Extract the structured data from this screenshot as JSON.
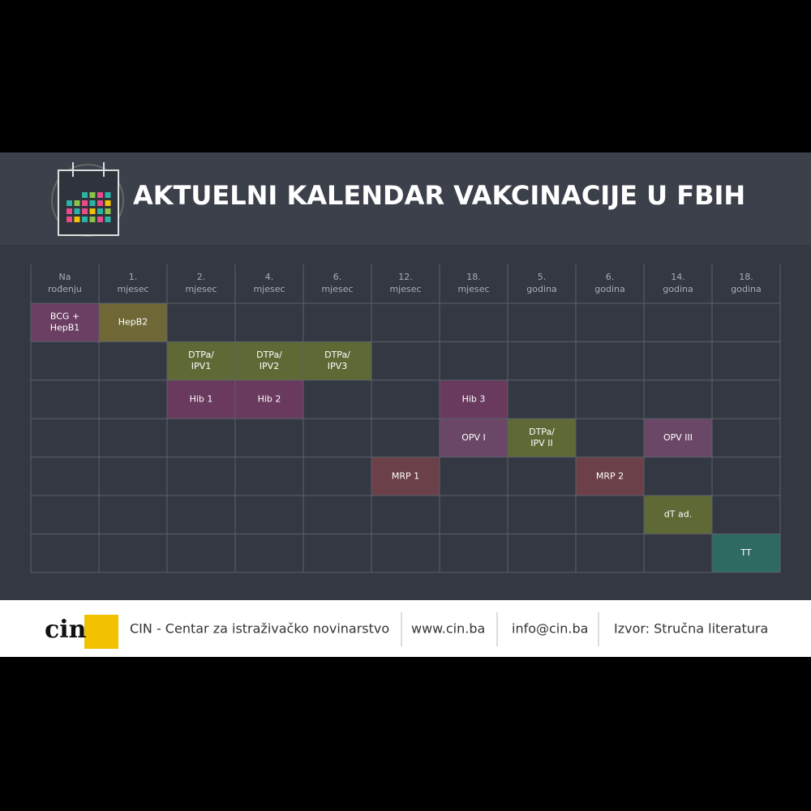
{
  "header": {
    "title": "AKTUELNI KALENDAR VAKCINACIJE U FBIH"
  },
  "table": {
    "columns": [
      [
        "Na",
        "rođenju"
      ],
      [
        "1.",
        "mjesec"
      ],
      [
        "2.",
        "mjesec"
      ],
      [
        "4.",
        "mjesec"
      ],
      [
        "6.",
        "mjesec"
      ],
      [
        "12.",
        "mjesec"
      ],
      [
        "18.",
        "mjesec"
      ],
      [
        "5.",
        "godina"
      ],
      [
        "6.",
        "godina"
      ],
      [
        "14.",
        "godina"
      ],
      [
        "18.",
        "godina"
      ]
    ],
    "rows": [
      [
        {
          "lines": [
            "BCG +",
            "HepB1"
          ],
          "color": "#6b3f63"
        },
        {
          "lines": [
            "HepB2"
          ],
          "color": "#6f6836"
        },
        null,
        null,
        null,
        null,
        null,
        null,
        null,
        null,
        null
      ],
      [
        null,
        null,
        {
          "lines": [
            "DTPa/",
            "IPV1"
          ],
          "color": "#5e6936"
        },
        {
          "lines": [
            "DTPa/",
            "IPV2"
          ],
          "color": "#5e6936"
        },
        {
          "lines": [
            "DTPa/",
            "IPV3"
          ],
          "color": "#5e6936"
        },
        null,
        null,
        null,
        null,
        null,
        null
      ],
      [
        null,
        null,
        {
          "lines": [
            "Hib 1"
          ],
          "color": "#693a5d"
        },
        {
          "lines": [
            "Hib 2"
          ],
          "color": "#693a5d"
        },
        null,
        null,
        {
          "lines": [
            "Hib 3"
          ],
          "color": "#693a5d"
        },
        null,
        null,
        null,
        null
      ],
      [
        null,
        null,
        null,
        null,
        null,
        null,
        {
          "lines": [
            "OPV I"
          ],
          "color": "#6a4766"
        },
        {
          "lines": [
            "DTPa/",
            "IPV II"
          ],
          "color": "#5e6936"
        },
        null,
        {
          "lines": [
            "OPV III"
          ],
          "color": "#6a4766"
        },
        null
      ],
      [
        null,
        null,
        null,
        null,
        null,
        {
          "lines": [
            "MRP 1"
          ],
          "color": "#6b4049"
        },
        null,
        null,
        {
          "lines": [
            "MRP 2"
          ],
          "color": "#6b4049"
        },
        null,
        null
      ],
      [
        null,
        null,
        null,
        null,
        null,
        null,
        null,
        null,
        null,
        {
          "lines": [
            "dT ad."
          ],
          "color": "#5e6936"
        },
        null
      ],
      [
        null,
        null,
        null,
        null,
        null,
        null,
        null,
        null,
        null,
        null,
        {
          "lines": [
            "TT"
          ],
          "color": "#2e6a62"
        }
      ]
    ]
  },
  "footer": {
    "logo": "cin",
    "organization": "CIN - Centar za istraživačko novinarstvo",
    "website": "www.cin.ba",
    "email": "info@cin.ba",
    "source": "Izvor: Stručna literatura"
  }
}
